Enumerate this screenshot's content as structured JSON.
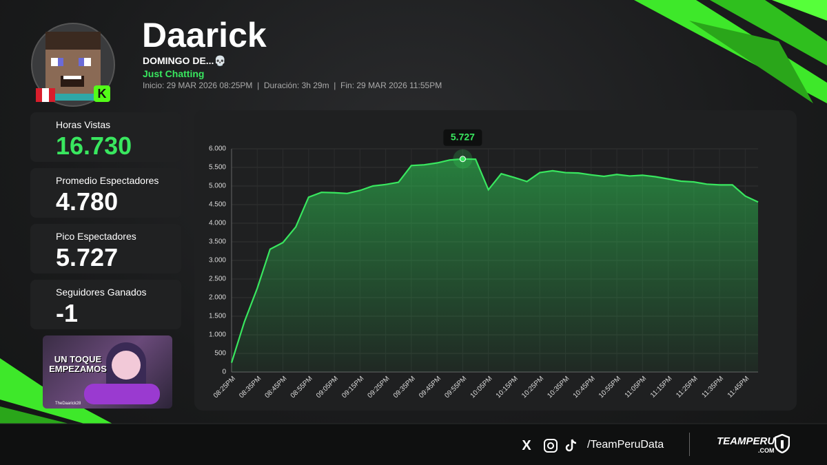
{
  "header": {
    "title": "Daarick",
    "subtitle": "DOMINGO DE...💀",
    "category": "Just Chatting",
    "details": "Inicio: 29 MAR 2026 08:25PM  |  Duración: 3h 29m  |  Fin: 29 MAR 2026 11:55PM"
  },
  "stats": [
    {
      "label": "Horas Vistas",
      "value": "16.730"
    },
    {
      "label": "Promedio Espectadores",
      "value": "4.780"
    },
    {
      "label": "Pico Espectadores",
      "value": "5.727"
    },
    {
      "label": "Seguidores Ganados",
      "value": "-1"
    }
  ],
  "thumbnail": {
    "text": "UN TOQUE EMPEZAMOS",
    "handle": "TheDaarick28"
  },
  "footer": {
    "handle": "/TeamPeruData",
    "brand": "TEAMPERU",
    "domain": ".COM"
  },
  "chart_data": {
    "type": "line",
    "color": "#39e75f",
    "grid": true,
    "categories": [
      "08:25PM",
      null,
      "08:35PM",
      null,
      "08:45PM",
      null,
      "08:55PM",
      null,
      "09:05PM",
      null,
      "09:15PM",
      null,
      "09:25PM",
      null,
      "09:35PM",
      null,
      "09:45PM",
      null,
      "09:55PM",
      null,
      "10:05PM",
      null,
      "10:15PM",
      null,
      "10:25PM",
      null,
      "10:35PM",
      null,
      "10:45PM",
      null,
      "10:55PM",
      null,
      "11:05PM",
      null,
      "11:15PM",
      null,
      "11:25PM",
      null,
      "11:35PM",
      null,
      "11:45PM",
      null
    ],
    "values": [
      250,
      1350,
      2250,
      3300,
      3480,
      3900,
      4700,
      4830,
      4820,
      4800,
      4880,
      5000,
      5040,
      5100,
      5550,
      5570,
      5620,
      5700,
      5727,
      5720,
      4900,
      5330,
      5230,
      5120,
      5360,
      5410,
      5360,
      5350,
      5300,
      5260,
      5310,
      5270,
      5290,
      5250,
      5190,
      5130,
      5110,
      5050,
      5030,
      5030,
      4730,
      4570
    ],
    "ylim": [
      0,
      6000
    ],
    "yticks": [
      0,
      500,
      {
        "value": 1000,
        "label": "1.000"
      },
      {
        "value": 1500,
        "label": "1.500"
      },
      {
        "value": 2000,
        "label": "2.000"
      },
      {
        "value": 2500,
        "label": "2.500"
      },
      {
        "value": 3000,
        "label": "3.000"
      },
      {
        "value": 3500,
        "label": "3.500"
      },
      {
        "value": 4000,
        "label": "4.000"
      },
      {
        "value": 4500,
        "label": "4.500"
      },
      {
        "value": 5000,
        "label": "5.000"
      },
      {
        "value": 5500,
        "label": "5.500"
      },
      {
        "value": 6000,
        "label": "6.000"
      }
    ],
    "annotations": [
      {
        "text": "5.727",
        "value": 5727
      }
    ]
  }
}
